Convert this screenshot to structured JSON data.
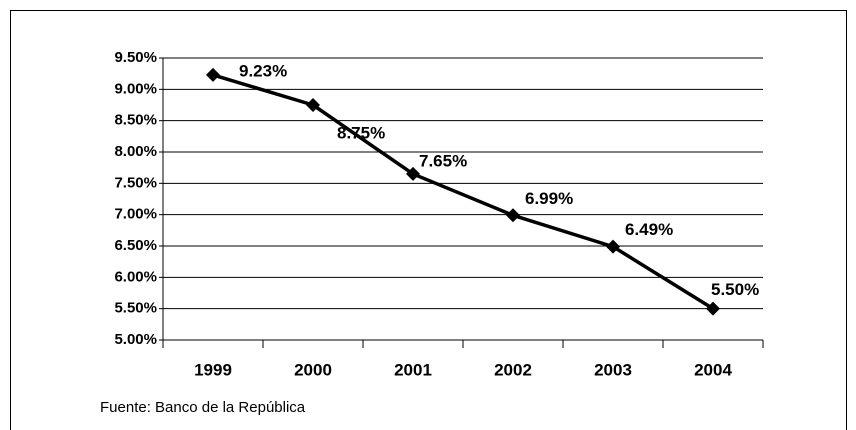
{
  "chart_data": {
    "type": "line",
    "categories": [
      "1999",
      "2000",
      "2001",
      "2002",
      "2003",
      "2004"
    ],
    "series": [
      {
        "color": "#000000",
        "values": [
          9.23,
          8.75,
          7.65,
          6.99,
          6.49,
          5.5
        ],
        "value_labels": [
          "9.23%",
          "8.75%",
          "7.65%",
          "6.99%",
          "6.49%",
          "5.50%"
        ]
      }
    ],
    "ylim": [
      5,
      9.5
    ],
    "yticks": [
      {
        "value": 5,
        "label": "5.00%"
      },
      {
        "value": 5.5,
        "label": "5.50%"
      },
      {
        "value": 6,
        "label": "6.00%"
      },
      {
        "value": 6.5,
        "label": "6.50%"
      },
      {
        "value": 7,
        "label": "7.00%"
      },
      {
        "value": 7.5,
        "label": "7.50%"
      },
      {
        "value": 8,
        "label": "8.00%"
      },
      {
        "value": 8.5,
        "label": "8.50%"
      },
      {
        "value": 9,
        "label": "9.00%"
      },
      {
        "value": 9.5,
        "label": "9.50%"
      }
    ],
    "grid": true,
    "source": "Fuente: Banco de la República"
  }
}
